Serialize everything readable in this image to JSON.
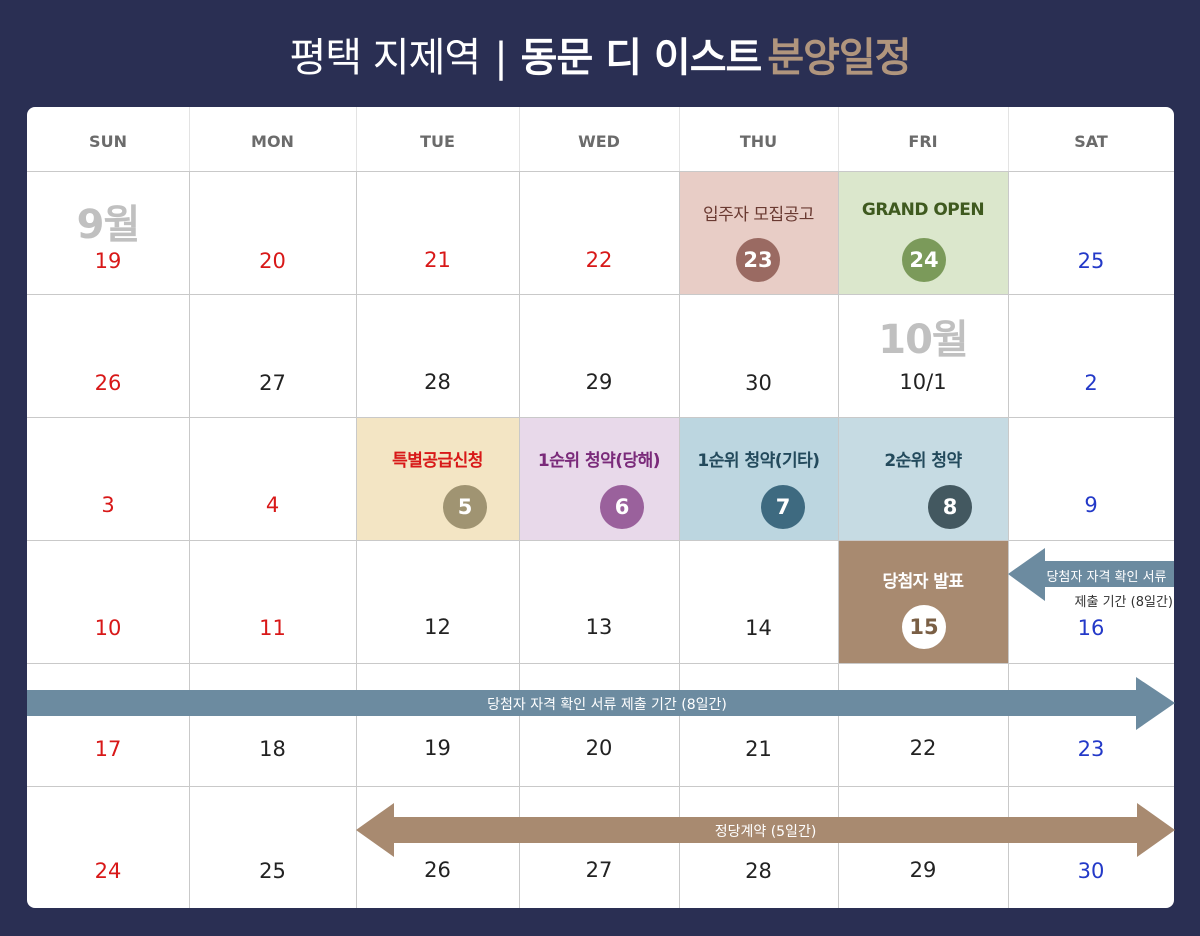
{
  "title": {
    "part1": "평택 지제역",
    "separator": "|",
    "part2": "동문 디 이스트",
    "part3": "분양일정"
  },
  "weekdays": [
    "SUN",
    "MON",
    "TUE",
    "WED",
    "THU",
    "FRI",
    "SAT"
  ],
  "months": {
    "sep": "9월",
    "oct": "10월"
  },
  "weeks": [
    [
      "19",
      "20",
      "21",
      "22",
      "23",
      "24",
      "25"
    ],
    [
      "26",
      "27",
      "28",
      "29",
      "30",
      "10/1",
      "2"
    ],
    [
      "3",
      "4",
      "5",
      "6",
      "7",
      "8",
      "9"
    ],
    [
      "10",
      "11",
      "12",
      "13",
      "14",
      "15",
      "16"
    ],
    [
      "17",
      "18",
      "19",
      "20",
      "21",
      "22",
      "23"
    ],
    [
      "24",
      "25",
      "26",
      "27",
      "28",
      "29",
      "30"
    ]
  ],
  "events": {
    "recruit_notice": "입주자 모집공고",
    "grand_open": "GRAND OPEN",
    "special_supply": "특별공급신청",
    "first_local": "1순위 청약(당해)",
    "first_other": "1순위 청약(기타)",
    "second": "2순위 청약",
    "winner_announce": "당첨자 발표"
  },
  "arrows": {
    "doc_submit_callout_line1": "당첨자 자격 확인 서류",
    "doc_submit_callout_line2": "제출 기간 (8일간)",
    "doc_submit_bar": "당첨자 자격 확인 서류 제출 기간 (8일간)",
    "contract_bar": "정당계약 (5일간)"
  },
  "colors": {
    "background": "#2a2f53",
    "accent_title": "#b0957d",
    "recruit_bg": "#e8cdc6",
    "recruit_circle": "#9a6a62",
    "recruit_text": "#6a3a32",
    "open_bg": "#dbe7cc",
    "open_circle": "#7b9a5a",
    "open_text": "#3f5a1f",
    "special_bg": "#f3e5c4",
    "special_circle": "#a09472",
    "special_text": "#d81818",
    "first_local_bg": "#e8d9ea",
    "first_local_circle": "#9a619c",
    "first_local_text": "#7a2a7a",
    "first_other_bg": "#bcd6e0",
    "first_other_circle": "#3e6a80",
    "first_other_text": "#234a5c",
    "second_bg": "#c6dbe3",
    "second_circle": "#435860",
    "second_text": "#234a5c",
    "winner_bg": "#a88a70",
    "doc_arrow": "#6c8ba0",
    "contract_arrow": "#a88a70"
  }
}
